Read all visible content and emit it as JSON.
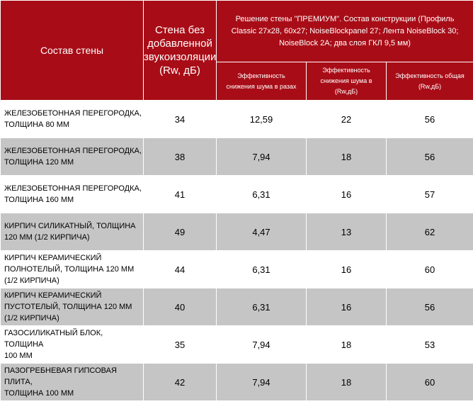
{
  "header": {
    "composition": "Состав стены",
    "base_line1": "Стена без",
    "base_line2": "добавленной",
    "base_line3": "звукоизоляции",
    "base_line4": "(Rw, дБ)",
    "group_line1": "Решение стены \"ПРЕМИУМ\". Состав конструкции (Профиль",
    "group_line2": "Classic 27х28, 60х27; NoiseBlockpanel 27; Лента NoiseBlock 30;",
    "group_line3": "NoiseBlock 2А; два слоя ГКЛ 9,5 мм)",
    "eff_times_line1": "Эффективность",
    "eff_times_line2": "снижения шума в разах",
    "eff_db_line1": "Эффективность",
    "eff_db_line2": "снижения шума в",
    "eff_db_line3": "(Rw,дБ)",
    "eff_total_line1": "Эффективность общая",
    "eff_total_line2": "(Rw,дБ)"
  },
  "rows": [
    {
      "name_lines": [
        "ЖЕЛЕЗОБЕТОННАЯ ПЕРЕГОРОДКА,",
        "ТОЛЩИНА 80 ММ",
        ""
      ],
      "base": "34",
      "times": "12,59",
      "db": "22",
      "total": "56"
    },
    {
      "name_lines": [
        "ЖЕЛЕЗОБЕТОННАЯ ПЕРЕГОРОДКА,",
        "ТОЛЩИНА 120 ММ",
        ""
      ],
      "base": "38",
      "times": "7,94",
      "db": "18",
      "total": "56"
    },
    {
      "name_lines": [
        "ЖЕЛЕЗОБЕТОННАЯ ПЕРЕГОРОДКА,",
        "ТОЛЩИНА 160 ММ",
        ""
      ],
      "base": "41",
      "times": "6,31",
      "db": "16",
      "total": "57"
    },
    {
      "name_lines": [
        "КИРПИЧ СИЛИКАТНЫЙ, ТОЛЩИНА",
        "120 ММ (1/2 КИРПИЧА)",
        ""
      ],
      "base": "49",
      "times": "4,47",
      "db": "13",
      "total": "62"
    },
    {
      "name_lines": [
        "КИРПИЧ КЕРАМИЧЕСКИЙ",
        "ПОЛНОТЕЛЫЙ, ТОЛЩИНА 120 ММ",
        "(1/2 КИРПИЧА)"
      ],
      "base": "44",
      "times": "6,31",
      "db": "16",
      "total": "60"
    },
    {
      "name_lines": [
        "КИРПИЧ КЕРАМИЧЕСКИЙ",
        "ПУСТОТЕЛЫЙ, ТОЛЩИНА 120 ММ",
        "(1/2 КИРПИЧА)"
      ],
      "base": "40",
      "times": "6,31",
      "db": "16",
      "total": "56"
    },
    {
      "name_lines": [
        "ГАЗОСИЛИКАТНЫЙ БЛОК,",
        "ТОЛЩИНА",
        "100 ММ"
      ],
      "base": "35",
      "times": "7,94",
      "db": "18",
      "total": "53"
    },
    {
      "name_lines": [
        "ПАЗОГРЕБНЕВАЯ ГИПСОВАЯ ПЛИТА,",
        "ТОЛЩИНА 100 ММ",
        ""
      ],
      "base": "42",
      "times": "7,94",
      "db": "18",
      "total": "60"
    }
  ]
}
